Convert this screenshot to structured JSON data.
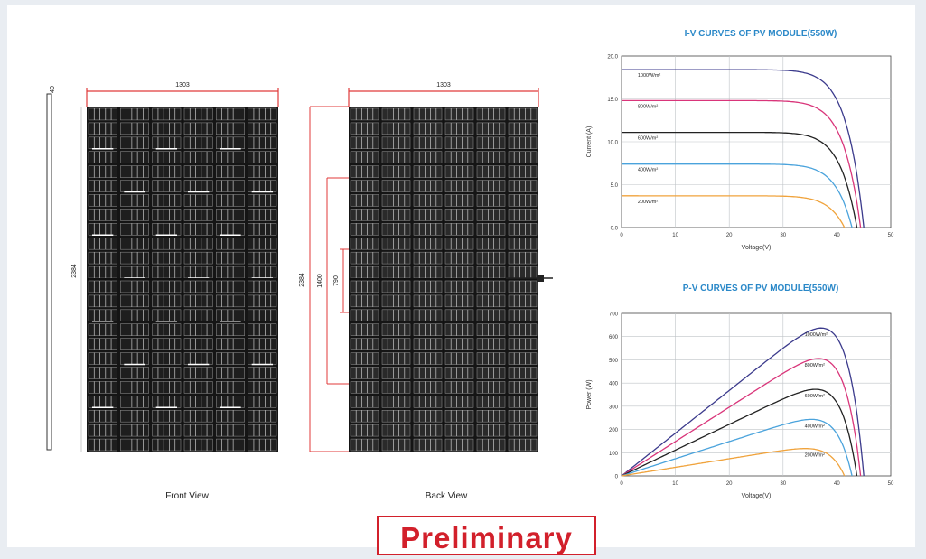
{
  "front_view": {
    "label": "Front View",
    "width_dim": "1303",
    "height_dim": "2384",
    "thickness_dim": "40"
  },
  "back_view": {
    "label": "Back View",
    "width_dim": "1303",
    "height_dim": "2384",
    "mount_dim_outer": "1400",
    "mount_dim_inner": "790"
  },
  "iv_chart": {
    "title": "I-V CURVES OF PV MODULE(550W)",
    "xlabel": "Voltage(V)",
    "ylabel": "Current (A)",
    "xticks": [
      "0",
      "10",
      "20",
      "30",
      "40",
      "50"
    ],
    "yticks": [
      "0.0",
      "5.0",
      "10.0",
      "15.0",
      "20.0"
    ],
    "legend": [
      "1000W/m²",
      "800W/m²",
      "600W/m²",
      "400W/m²",
      "200W/m²"
    ]
  },
  "pv_chart": {
    "title": "P-V CURVES OF PV MODULE(550W)",
    "xlabel": "Voltage(V)",
    "ylabel": "Power (W)",
    "xticks": [
      "0",
      "10",
      "20",
      "30",
      "40",
      "50"
    ],
    "yticks": [
      "0",
      "100",
      "200",
      "300",
      "400",
      "500",
      "600",
      "700"
    ],
    "legend": [
      "1000W/m²",
      "800W/m²",
      "600W/m²",
      "400W/m²",
      "200W/m²"
    ]
  },
  "series_colors": [
    "#3b3a8c",
    "#d9357a",
    "#222222",
    "#4aa3dc",
    "#f0a33c"
  ],
  "chart_data": [
    {
      "type": "line",
      "title": "I-V CURVES OF PV MODULE(550W)",
      "xlabel": "Voltage(V)",
      "ylabel": "Current (A)",
      "xlim": [
        0,
        50
      ],
      "ylim": [
        0,
        20
      ],
      "grid": true,
      "legend_position": "inline-left",
      "series": [
        {
          "name": "1000W/m²",
          "isc": 18.4,
          "voc": 45.0
        },
        {
          "name": "800W/m²",
          "isc": 14.8,
          "voc": 44.4
        },
        {
          "name": "600W/m²",
          "isc": 11.1,
          "voc": 43.7
        },
        {
          "name": "400W/m²",
          "isc": 7.4,
          "voc": 42.8
        },
        {
          "name": "200W/m²",
          "isc": 3.7,
          "voc": 41.4
        }
      ]
    },
    {
      "type": "line",
      "title": "P-V CURVES OF PV MODULE(550W)",
      "xlabel": "Voltage(V)",
      "ylabel": "Power (W)",
      "xlim": [
        0,
        50
      ],
      "ylim": [
        0,
        700
      ],
      "grid": true,
      "legend_position": "inline-right",
      "series": [
        {
          "name": "1000W/m²",
          "isc": 18.4,
          "voc": 45.0
        },
        {
          "name": "800W/m²",
          "isc": 14.8,
          "voc": 44.4
        },
        {
          "name": "600W/m²",
          "isc": 11.1,
          "voc": 43.7
        },
        {
          "name": "400W/m²",
          "isc": 7.4,
          "voc": 42.8
        },
        {
          "name": "200W/m²",
          "isc": 3.7,
          "voc": 41.4
        }
      ]
    }
  ],
  "stamp": {
    "text": "Preliminary"
  }
}
